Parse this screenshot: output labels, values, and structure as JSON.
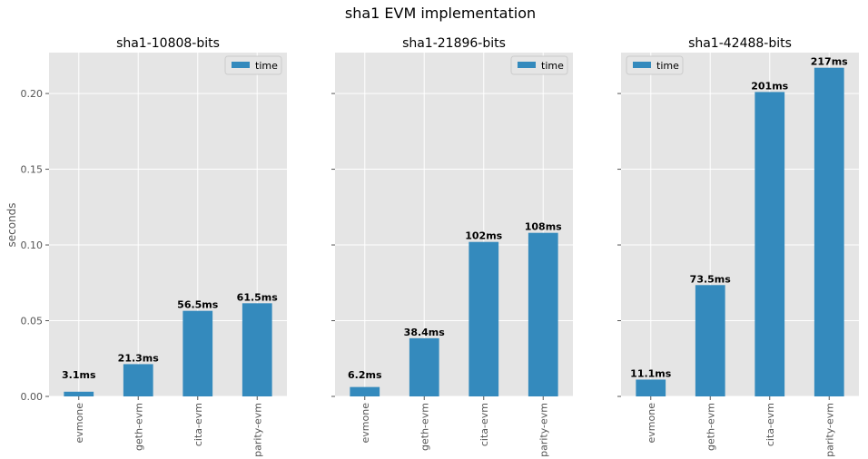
{
  "figure": {
    "suptitle": "sha1 EVM implementation",
    "ylabel": "seconds"
  },
  "colors": {
    "bar": "#348abd",
    "plot_background": "#e5e5e5",
    "grid": "#ffffff",
    "tick_text": "#555555",
    "label_text": "#000000"
  },
  "chart_data": [
    {
      "type": "bar",
      "title": "sha1-10808-bits",
      "categories": [
        "evmone",
        "geth-evm",
        "cita-evm",
        "parity-evm"
      ],
      "series": [
        {
          "name": "time",
          "values": [
            0.0031,
            0.0213,
            0.0565,
            0.0615
          ]
        }
      ],
      "data_labels": [
        "3.1ms",
        "21.3ms",
        "56.5ms",
        "61.5ms"
      ],
      "ylim": [
        0,
        0.227
      ],
      "yticks": [
        "0.00",
        "0.05",
        "0.10",
        "0.15",
        "0.20"
      ],
      "ytick_values": [
        0,
        0.05,
        0.1,
        0.15,
        0.2
      ],
      "grid": true,
      "legend": "top-right"
    },
    {
      "type": "bar",
      "title": "sha1-21896-bits",
      "categories": [
        "evmone",
        "geth-evm",
        "cita-evm",
        "parity-evm"
      ],
      "series": [
        {
          "name": "time",
          "values": [
            0.0062,
            0.0384,
            0.102,
            0.108
          ]
        }
      ],
      "data_labels": [
        "6.2ms",
        "38.4ms",
        "102ms",
        "108ms"
      ],
      "ylim": [
        0,
        0.227
      ],
      "yticks": [],
      "ytick_values": [
        0,
        0.05,
        0.1,
        0.15,
        0.2
      ],
      "grid": true,
      "legend": "top-right"
    },
    {
      "type": "bar",
      "title": "sha1-42488-bits",
      "categories": [
        "evmone",
        "geth-evm",
        "cita-evm",
        "parity-evm"
      ],
      "series": [
        {
          "name": "time",
          "values": [
            0.0111,
            0.0735,
            0.201,
            0.217
          ]
        }
      ],
      "data_labels": [
        "11.1ms",
        "73.5ms",
        "201ms",
        "217ms"
      ],
      "ylim": [
        0,
        0.227
      ],
      "yticks": [],
      "ytick_values": [
        0,
        0.05,
        0.1,
        0.15,
        0.2
      ],
      "grid": true,
      "legend": "top-left"
    }
  ]
}
